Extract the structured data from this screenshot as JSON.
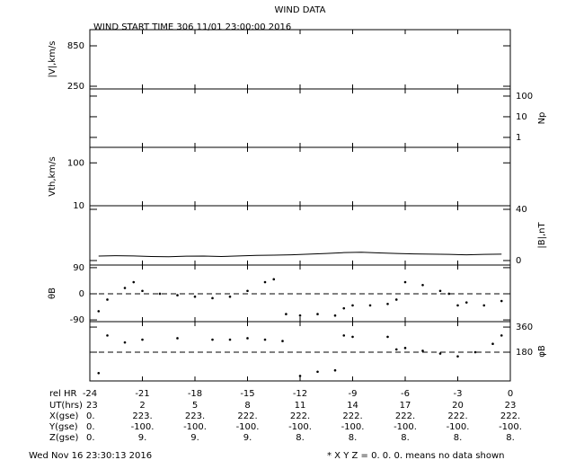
{
  "chart_data": {
    "type": "multi-panel",
    "title": "WIND DATA",
    "subtitle": "WIND START TIME 306 11/01 23:00:00 2016",
    "xlabel": "rel HR",
    "xlim": [
      -24,
      0
    ],
    "xticks": [
      -24,
      -21,
      -18,
      -15,
      -12,
      -9,
      -6,
      -3,
      0
    ],
    "panels": [
      {
        "type": "line",
        "ylabel": "|V|,km/s",
        "side": "left",
        "log": false,
        "ylim": [
          210,
          1090
        ],
        "yticks": [
          250,
          850
        ],
        "x": [],
        "values": []
      },
      {
        "type": "line",
        "ylabel": "Np",
        "side": "right",
        "log": true,
        "ylim": [
          0.33,
          222
        ],
        "yticks": [
          1,
          10,
          100
        ],
        "x": [],
        "values": []
      },
      {
        "type": "line",
        "ylabel": "Vth,km/s",
        "side": "left",
        "log": true,
        "ylim": [
          10,
          230
        ],
        "yticks": [
          10,
          100
        ],
        "x": [],
        "values": []
      },
      {
        "type": "line",
        "ylabel": "|B|,nT",
        "side": "right",
        "log": false,
        "ylim": [
          -3.5,
          42.8
        ],
        "yticks": [
          0,
          40
        ],
        "color": "#000000",
        "x": [
          -23.5,
          -22.5,
          -21.5,
          -20.5,
          -19.5,
          -18.5,
          -17.5,
          -16.5,
          -15.5,
          -14.5,
          -13.5,
          -12.5,
          -11.5,
          -10.5,
          -9.5,
          -8.5,
          -7.5,
          -6.5,
          -5.5,
          -4.5,
          -3.5,
          -2.5,
          -1.5,
          -0.5
        ],
        "values": [
          3.5,
          3.8,
          3.6,
          3.2,
          3.0,
          3.4,
          3.5,
          3.2,
          3.6,
          4.0,
          4.2,
          4.5,
          5.0,
          5.5,
          6.2,
          6.5,
          6.0,
          5.5,
          5.2,
          5.0,
          4.8,
          4.5,
          4.8,
          5.0
        ]
      },
      {
        "type": "scatter",
        "ylabel": "θB",
        "side": "left",
        "log": false,
        "ylim": [
          -96,
          99
        ],
        "yticks": [
          -90,
          0,
          90
        ],
        "reference_line": 0,
        "color": "#000000",
        "x": [
          -23.5,
          -23,
          -22,
          -21.5,
          -21,
          -20,
          -19,
          -18,
          -17,
          -16,
          -15,
          -14,
          -13.5,
          -12.8,
          -12,
          -11,
          -10,
          -9.5,
          -9,
          -8,
          -7,
          -6.5,
          -6,
          -5,
          -4,
          -3.5,
          -3,
          -2.5,
          -1.5,
          -0.5
        ],
        "values": [
          -60,
          -20,
          20,
          40,
          10,
          0,
          -5,
          -10,
          -15,
          -10,
          10,
          40,
          50,
          -70,
          -75,
          -70,
          -75,
          -50,
          -40,
          -40,
          -35,
          -20,
          40,
          30,
          10,
          0,
          -40,
          -30,
          -40,
          -25
        ]
      },
      {
        "type": "scatter",
        "ylabel": "φB",
        "side": "right",
        "log": false,
        "ylim": [
          -26,
          399
        ],
        "yticks": [
          180,
          360
        ],
        "reference_line": 180,
        "color": "#000000",
        "x": [
          -23.5,
          -23,
          -22,
          -21,
          -19,
          -17,
          -16,
          -15,
          -14,
          -13,
          -12,
          -11,
          -10,
          -9.5,
          -9,
          -7,
          -6.5,
          -6,
          -5,
          -4,
          -3,
          -2,
          -1,
          -0.5
        ],
        "values": [
          30,
          300,
          250,
          270,
          280,
          270,
          270,
          280,
          270,
          260,
          10,
          40,
          50,
          300,
          290,
          290,
          200,
          210,
          190,
          170,
          150,
          180,
          240,
          300
        ]
      }
    ],
    "rows": [
      {
        "label": "UT(hrs)",
        "values": [
          "23",
          "2",
          "5",
          "8",
          "11",
          "14",
          "17",
          "20",
          "23"
        ]
      },
      {
        "label": "X(gse)",
        "values": [
          "0.",
          "223.",
          "223.",
          "222.",
          "222.",
          "222.",
          "222.",
          "222.",
          "222."
        ]
      },
      {
        "label": "Y(gse)",
        "values": [
          "0.",
          "-100.",
          "-100.",
          "-100.",
          "-100.",
          "-100.",
          "-100.",
          "-100.",
          "-100."
        ]
      },
      {
        "label": "Z(gse)",
        "values": [
          "0.",
          "9.",
          "9.",
          "9.",
          "8.",
          "8.",
          "8.",
          "8.",
          "8."
        ]
      }
    ],
    "timestamp": "Wed Nov 16 23:30:13 2016",
    "note": "* X Y Z = 0. 0. 0. means no data shown"
  }
}
